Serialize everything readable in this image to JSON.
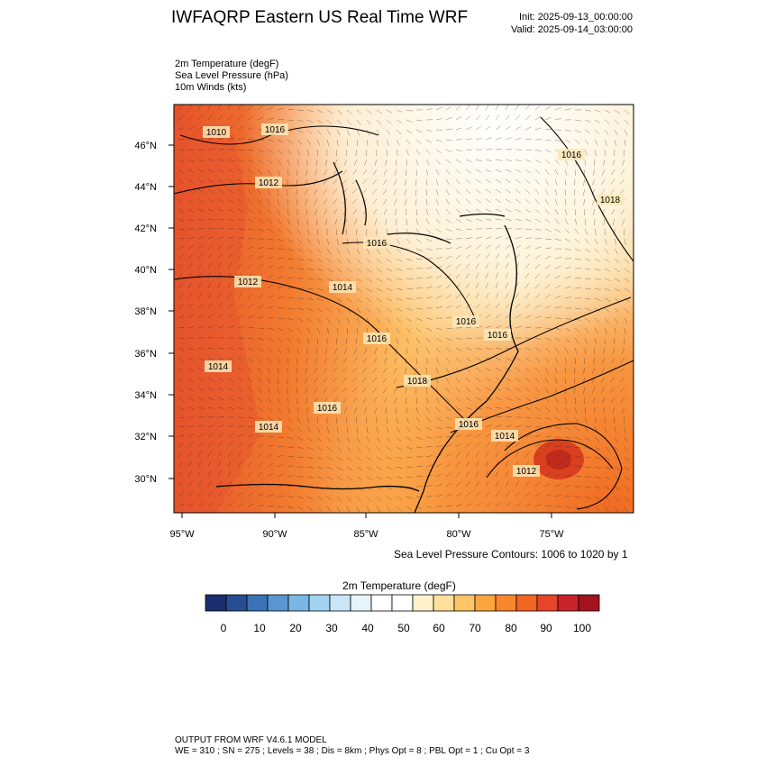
{
  "header": {
    "title": "IWFAQRP Eastern US Real Time WRF",
    "init": "Init: 2025-09-13_00:00:00",
    "valid": "Valid: 2025-09-14_03:00:00"
  },
  "fields": [
    "2m Temperature   (degF)",
    "Sea Level Pressure   (hPa)",
    "10m Winds   (kts)"
  ],
  "map": {
    "lat_labels": [
      "46°N",
      "44°N",
      "42°N",
      "40°N",
      "38°N",
      "36°N",
      "34°N",
      "32°N",
      "30°N"
    ],
    "lon_labels": [
      "95°W",
      "90°W",
      "85°W",
      "80°W",
      "75°W"
    ],
    "isobar_labels": [
      "1010",
      "1016",
      "1012",
      "1016",
      "1018",
      "1016",
      "1012",
      "1014",
      "1016",
      "1016",
      "1016",
      "1014",
      "1018",
      "1016",
      "1014",
      "1016",
      "1014",
      "1012"
    ],
    "contour_note": "Sea Level Pressure Contours: 1006 to 1020 by 1"
  },
  "colorbar": {
    "title": "2m Temperature   (degF)",
    "tick_labels": [
      "0",
      "10",
      "20",
      "30",
      "40",
      "50",
      "60",
      "70",
      "80",
      "90",
      "100"
    ],
    "colors": [
      "#1b2f6e",
      "#264d92",
      "#3a72b8",
      "#5a97d0",
      "#7bb7e4",
      "#a2d3f0",
      "#c8e6f7",
      "#e6f3fb",
      "#ffffff",
      "#ffffff",
      "#fff1cc",
      "#ffe09a",
      "#fdc567",
      "#fca53e",
      "#f8862a",
      "#f26523",
      "#e6452a",
      "#c8222a",
      "#a3141e"
    ]
  },
  "footer": {
    "line1": "OUTPUT FROM WRF V4.6.1 MODEL",
    "line2": "WE = 310 ; SN = 275 ; Levels = 38 ; Dis = 8km ; Phys Opt = 8 ; PBL Opt = 1 ; Cu Opt = 3"
  }
}
